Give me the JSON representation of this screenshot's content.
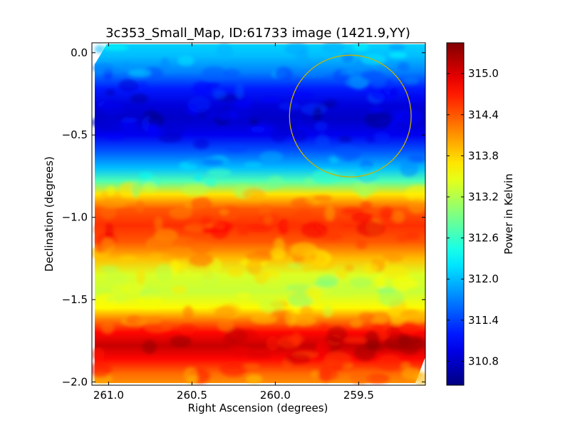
{
  "chart_data": {
    "type": "heatmap",
    "title": "3c353_Small_Map, ID:61733 image (1421.9,YY)",
    "xlabel": "Right Ascension (degrees)",
    "ylabel": "Declination (degrees)",
    "colorbar_label": "Power in Kelvin",
    "colormap": "jet",
    "xlim": [
      261.1,
      259.1
    ],
    "ylim": [
      -2.02,
      0.06
    ],
    "x_ticks": [
      261.0,
      260.5,
      260.0,
      259.5
    ],
    "x_tick_labels": [
      "261.0",
      "260.5",
      "260.0",
      "259.5"
    ],
    "y_ticks": [
      0.0,
      -0.5,
      -1.0,
      -1.5,
      -2.0
    ],
    "y_tick_labels": [
      "0.0",
      "−0.5",
      "−1.0",
      "−1.5",
      "−2.0"
    ],
    "colorbar_range": [
      310.45,
      315.45
    ],
    "colorbar_ticks": [
      310.8,
      311.4,
      312.0,
      312.6,
      313.2,
      313.8,
      314.4,
      315.0
    ],
    "colorbar_tick_labels": [
      "310.8",
      "311.4",
      "312.0",
      "312.6",
      "313.2",
      "313.8",
      "314.4",
      "315.0"
    ],
    "declination_profile": [
      {
        "dec": 0.05,
        "power": 312.1
      },
      {
        "dec": -0.02,
        "power": 312.0
      },
      {
        "dec": -0.12,
        "power": 311.7
      },
      {
        "dec": -0.22,
        "power": 311.2
      },
      {
        "dec": -0.32,
        "power": 310.9
      },
      {
        "dec": -0.4,
        "power": 310.8
      },
      {
        "dec": -0.5,
        "power": 311.0
      },
      {
        "dec": -0.6,
        "power": 311.5
      },
      {
        "dec": -0.7,
        "power": 312.0
      },
      {
        "dec": -0.78,
        "power": 312.7
      },
      {
        "dec": -0.86,
        "power": 313.7
      },
      {
        "dec": -0.95,
        "power": 314.4
      },
      {
        "dec": -1.05,
        "power": 314.6
      },
      {
        "dec": -1.15,
        "power": 314.4
      },
      {
        "dec": -1.25,
        "power": 313.9
      },
      {
        "dec": -1.35,
        "power": 313.4
      },
      {
        "dec": -1.45,
        "power": 313.3
      },
      {
        "dec": -1.55,
        "power": 313.6
      },
      {
        "dec": -1.62,
        "power": 314.2
      },
      {
        "dec": -1.7,
        "power": 314.8
      },
      {
        "dec": -1.78,
        "power": 315.1
      },
      {
        "dec": -1.86,
        "power": 314.8
      },
      {
        "dec": -1.95,
        "power": 314.3
      },
      {
        "dec": -2.02,
        "power": 314.1
      }
    ],
    "overlay_circle": {
      "ra_center": 259.55,
      "dec_center": -0.385,
      "radius_deg": 0.37,
      "color": "#c8b400"
    },
    "grid": false
  },
  "colors": {
    "frame": "#000000",
    "circle": "#c8b400",
    "background": "#ffffff"
  }
}
